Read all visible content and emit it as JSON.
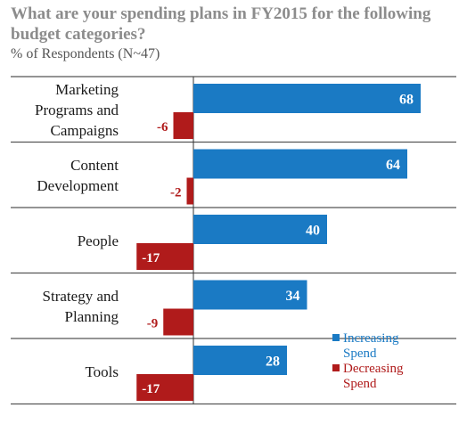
{
  "title": "What are your spending plans in FY2015 for the following budget categories?",
  "subtitle": "% of Respondents (N~47)",
  "colors": {
    "increase": "#1a7ac4",
    "decrease": "#b01b1b",
    "divider": "#555555",
    "axis": "#333333"
  },
  "chart_data": {
    "type": "bar",
    "orientation": "horizontal",
    "categories": [
      [
        "Marketing",
        "Programs and",
        "Campaigns"
      ],
      [
        "Content",
        "Development"
      ],
      [
        "People"
      ],
      [
        "Strategy and",
        "Planning"
      ],
      [
        "Tools"
      ]
    ],
    "series": [
      {
        "name": "Increasing Spend",
        "values": [
          68,
          64,
          40,
          34,
          28
        ]
      },
      {
        "name": "Decreasing Spend",
        "values": [
          -6,
          -2,
          -17,
          -9,
          -17
        ]
      }
    ],
    "value_labels": {
      "increase": [
        "68",
        "64",
        "40",
        "34",
        "28"
      ],
      "decrease": [
        "-6",
        "-2",
        "-17",
        "-9",
        "-17"
      ]
    },
    "legend": {
      "position": "bottom-right",
      "entries": [
        {
          "lines": [
            "Increasing",
            "Spend"
          ]
        },
        {
          "lines": [
            "Decreasing",
            "Spend"
          ]
        }
      ]
    },
    "xlim": [
      -20,
      80
    ]
  }
}
